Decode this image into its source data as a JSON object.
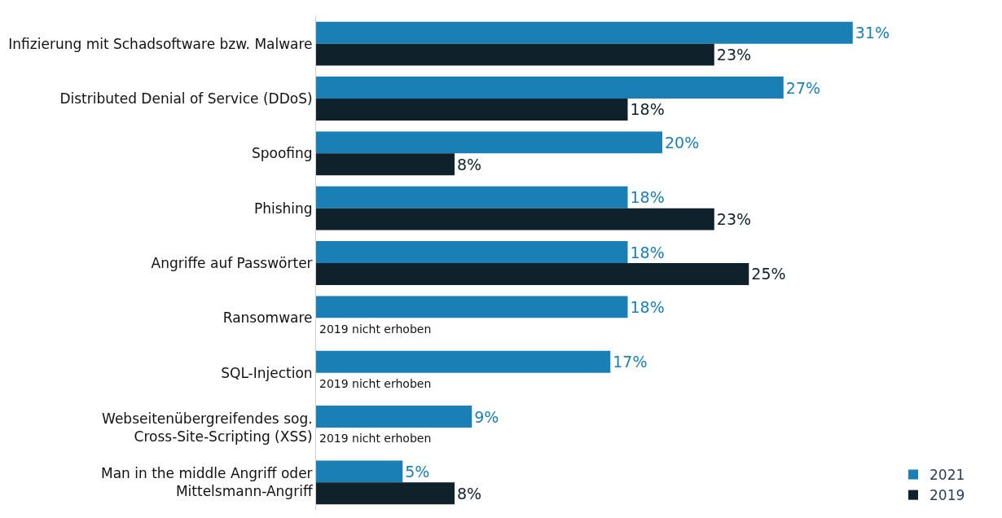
{
  "chart_data": {
    "type": "bar",
    "orientation": "horizontal",
    "categories": [
      "Infizierung mit Schadsoftware bzw. Malware",
      "Distributed Denial of Service (DDoS)",
      "Spoofing",
      "Phishing",
      "Angriffe auf Passwörter",
      "Ransomware",
      "SQL-Injection",
      "Webseitenübergreifendes sog.\nCross-Site-Scripting (XSS)",
      "Man in the middle Angriff oder\nMittelsmann-Angriff"
    ],
    "series": [
      {
        "name": "2021",
        "color": "#1a7fb5",
        "values": [
          31,
          27,
          20,
          18,
          18,
          18,
          17,
          9,
          5
        ],
        "value_labels": [
          "31%",
          "27%",
          "20%",
          "18%",
          "18%",
          "18%",
          "17%",
          "9%",
          "5%"
        ]
      },
      {
        "name": "2019",
        "color": "#0f222c",
        "values": [
          23,
          18,
          8,
          23,
          25,
          null,
          null,
          null,
          8
        ],
        "value_labels": [
          "23%",
          "18%",
          "8%",
          "23%",
          "25%",
          null,
          null,
          null,
          "8%"
        ]
      }
    ],
    "annotations": [
      {
        "text": "2019 nicht erhoben",
        "y": "Ransomware"
      },
      {
        "text": "2019 nicht erhoben",
        "y": "SQL-Injection"
      },
      {
        "text": "2019 nicht erhoben",
        "y": "Webseitenübergreifendes sog.\nCross-Site-Scripting (XSS)"
      }
    ],
    "legend": "bottom right"
  }
}
